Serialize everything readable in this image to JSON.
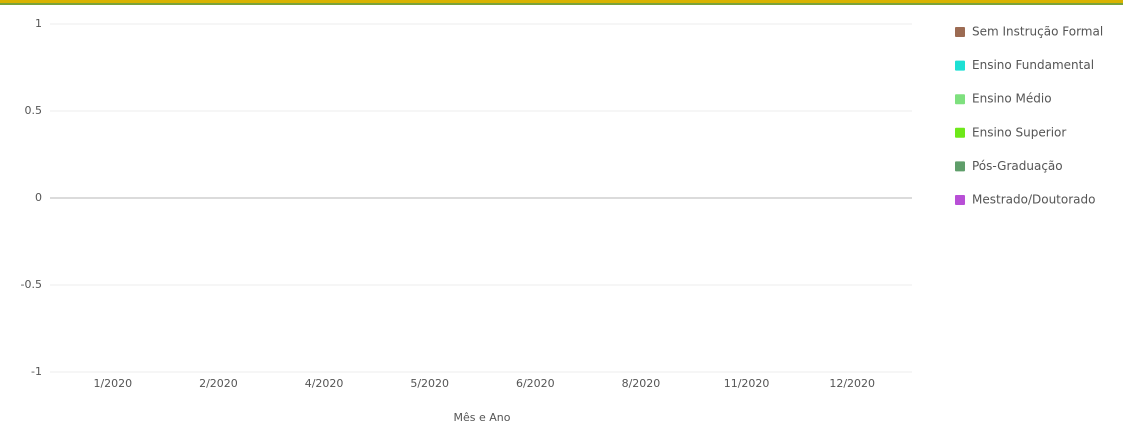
{
  "chart_data": {
    "type": "bar",
    "x_label": "Mês e Ano",
    "categories": [
      "1/2020",
      "2/2020",
      "4/2020",
      "5/2020",
      "6/2020",
      "8/2020",
      "11/2020",
      "12/2020"
    ],
    "series": [
      {
        "name": "Sem Instrução Formal",
        "color": "#9c6b53",
        "values": [
          null,
          null,
          null,
          null,
          null,
          null,
          null,
          null
        ]
      },
      {
        "name": "Ensino Fundamental",
        "color": "#1de0d4",
        "values": [
          null,
          null,
          null,
          null,
          null,
          null,
          null,
          null
        ]
      },
      {
        "name": "Ensino Médio",
        "color": "#7ee07e",
        "values": [
          null,
          null,
          null,
          null,
          null,
          null,
          null,
          null
        ]
      },
      {
        "name": "Ensino Superior",
        "color": "#6ee81a",
        "values": [
          null,
          null,
          null,
          null,
          null,
          null,
          null,
          null
        ]
      },
      {
        "name": "Pós-Graduação",
        "color": "#5f9e6a",
        "values": [
          null,
          null,
          null,
          null,
          null,
          null,
          null,
          null
        ]
      },
      {
        "name": "Mestrado/Doutorado",
        "color": "#b84fd6",
        "values": [
          null,
          null,
          null,
          null,
          null,
          null,
          null,
          null
        ]
      }
    ],
    "ylim": [
      -1,
      1
    ],
    "yticks": [
      -1,
      -0.5,
      0,
      0.5,
      1
    ],
    "grid": true,
    "legend": "right"
  }
}
